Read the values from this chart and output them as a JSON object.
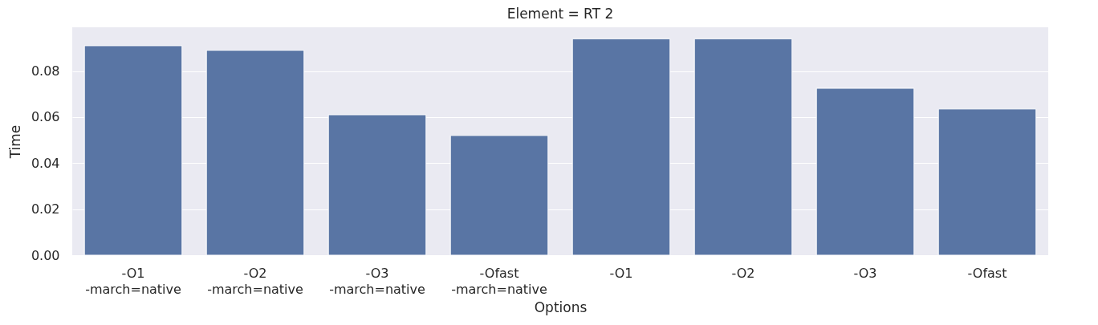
{
  "chart_data": {
    "type": "bar",
    "title": "Element = RT 2",
    "xlabel": "Options",
    "ylabel": "Time",
    "categories": [
      "-O1\n-march=native",
      "-O2\n-march=native",
      "-O3\n-march=native",
      "-Ofast\n-march=native",
      "-O1",
      "-O2",
      "-O3",
      "-Ofast"
    ],
    "values": [
      0.091,
      0.089,
      0.061,
      0.052,
      0.094,
      0.094,
      0.0725,
      0.0635
    ],
    "color": "#5975a4",
    "ylim": [
      0,
      0.099
    ],
    "yticks": [
      {
        "value": 0,
        "label": "0.00"
      },
      0.02,
      0.04,
      0.06,
      0.08
    ],
    "grid": "y"
  }
}
